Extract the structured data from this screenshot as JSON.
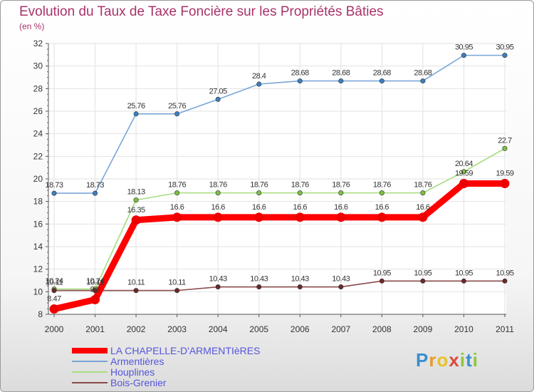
{
  "title": "Evolution du Taux de Taxe Foncière sur les Propriétés Bâties",
  "subtitle": "(en %)",
  "logo": {
    "letters": [
      "P",
      "r",
      "o",
      "x",
      "i",
      "t",
      "i"
    ],
    "colors": [
      "#3a8fd0",
      "#e89a2c",
      "#e8c22c",
      "#d94b3a",
      "#8cc63f",
      "#3a8fd0",
      "#8cc63f"
    ]
  },
  "chart_data": {
    "type": "line",
    "x": [
      "2000",
      "2001",
      "2002",
      "2003",
      "2004",
      "2005",
      "2006",
      "2007",
      "2008",
      "2009",
      "2010",
      "2011"
    ],
    "ylim": [
      8,
      32
    ],
    "yticks": [
      "8",
      "10",
      "12",
      "14",
      "16",
      "18",
      "20",
      "22",
      "24",
      "26",
      "28",
      "30",
      "32"
    ],
    "grid": true,
    "legend_position": "bottom-left",
    "series": [
      {
        "name": "Armentières",
        "color": "#7aa6d8",
        "marker": "#3b7fc0",
        "values": [
          18.73,
          18.73,
          25.76,
          25.76,
          27.05,
          28.4,
          28.68,
          28.68,
          28.68,
          28.68,
          30.95,
          30.95
        ],
        "labels": [
          "18.73",
          "18.73",
          "25.76",
          "25.76",
          "27.05",
          "28.4",
          "28.68",
          "28.68",
          "28.68",
          "28.68",
          "30.95",
          "30.95"
        ]
      },
      {
        "name": "Houplines",
        "color": "#a6dd7e",
        "marker": "#7cc242",
        "values": [
          10.24,
          10.24,
          18.13,
          18.76,
          18.76,
          18.76,
          18.76,
          18.76,
          18.76,
          18.76,
          20.64,
          22.7
        ],
        "labels": [
          "10.24",
          "10.24",
          "18.13",
          "18.76",
          "18.76",
          "18.76",
          "18.76",
          "18.76",
          "18.76",
          "18.76",
          "20.64",
          "22.7"
        ]
      },
      {
        "name": "Bois-Grenier",
        "color": "#8a4a4a",
        "marker": "#6a2a2a",
        "values": [
          10.11,
          10.11,
          10.11,
          10.11,
          10.43,
          10.43,
          10.43,
          10.43,
          10.95,
          10.95,
          10.95,
          10.95
        ],
        "labels": [
          "10.11",
          "10.11",
          "10.11",
          "10.11",
          "10.43",
          "10.43",
          "10.43",
          "10.43",
          "10.95",
          "10.95",
          "10.95",
          "10.95"
        ]
      },
      {
        "name": "LA CHAPELLE-D'ARMENTIèRES",
        "color": "#ff0000",
        "marker": "#ee0000",
        "values": [
          8.47,
          9.3,
          16.35,
          16.6,
          16.6,
          16.6,
          16.6,
          16.6,
          16.6,
          16.6,
          19.59,
          19.59
        ],
        "labels": [
          "8.47",
          "9.3",
          "16.35",
          "16.6",
          "16.6",
          "16.6",
          "16.6",
          "16.6",
          "16.6",
          "16.6",
          "19.59",
          "19.59"
        ]
      }
    ]
  },
  "legend": {
    "items": [
      {
        "label": "LA CHAPELLE-D'ARMENTIèRES",
        "color": "#ff0000",
        "weight": 8
      },
      {
        "label": "Armentières",
        "color": "#7aa6d8",
        "weight": 2
      },
      {
        "label": "Houplines",
        "color": "#a6dd7e",
        "weight": 2
      },
      {
        "label": "Bois-Grenier",
        "color": "#8a4a4a",
        "weight": 2
      }
    ]
  }
}
